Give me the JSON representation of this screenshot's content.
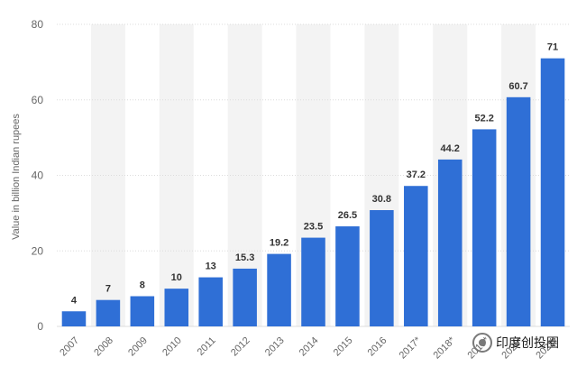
{
  "chart_data": {
    "type": "bar",
    "ylabel": "Value in billion Indian rupees",
    "categories": [
      "2007",
      "2008",
      "2009",
      "2010",
      "2011",
      "2012",
      "2013",
      "2014",
      "2015",
      "2016",
      "2017*",
      "2018*",
      "2019*",
      "2020*",
      "2021*"
    ],
    "values": [
      4,
      7,
      8,
      10,
      13,
      15.3,
      19.2,
      23.5,
      26.5,
      30.8,
      37.2,
      44.2,
      52.2,
      60.7,
      71
    ],
    "ylim": [
      0,
      80
    ],
    "yticks": [
      0,
      20,
      40,
      60,
      80
    ],
    "grid": true,
    "colors": {
      "bar": "#2f6fd6",
      "band": "#f3f3f3",
      "grid": "#dcdcdc"
    }
  },
  "watermark": {
    "text": "印度创投圈",
    "icon": "wechat-logo-icon"
  }
}
